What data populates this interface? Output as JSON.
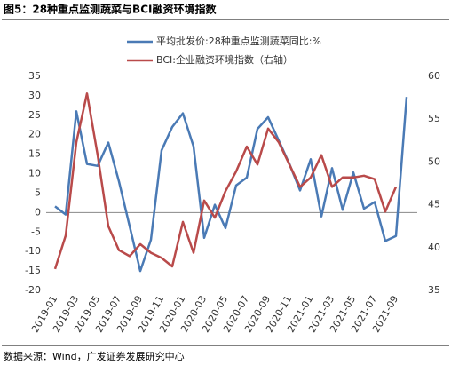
{
  "chart_data": {
    "type": "line",
    "title": "图5：28种重点监测蔬菜与BCI融资环境指数",
    "source": "数据来源：Wind，广发证券发展研究中心",
    "categories": [
      "2019-01",
      null,
      "2019-03",
      null,
      "2019-05",
      null,
      "2019-07",
      null,
      "2019-09",
      null,
      "2019-11",
      null,
      "2020-01",
      null,
      "2020-03",
      null,
      "2020-05",
      null,
      "2020-07",
      null,
      "2020-09",
      null,
      "2020-11",
      null,
      "2021-01",
      null,
      "2021-03",
      null,
      "2021-05",
      null,
      "2021-07",
      null,
      "2021-09",
      null
    ],
    "series": [
      {
        "name": "平均批发价:28种重点监测蔬菜同比:%",
        "color": "#4a7ab5",
        "axis": "y",
        "values": [
          1.6,
          -0.5,
          26,
          12.5,
          12,
          18,
          8,
          -3.5,
          -15,
          -7,
          16,
          22,
          25.5,
          17,
          -6.5,
          2,
          -4,
          7,
          9,
          21.5,
          24.5,
          18.5,
          12.5,
          5.7,
          13.7,
          -1,
          11.4,
          0.7,
          10.3,
          1,
          2.7,
          -7.3,
          -6,
          29.7
        ]
      },
      {
        "name": "BCI:企业融资环境指数（右轴）",
        "color": "#b94a4a",
        "axis": "y2",
        "values": [
          37.5,
          41.4,
          52.3,
          58,
          50.8,
          42.5,
          39.7,
          39,
          40.4,
          39.4,
          38.8,
          37.8,
          43,
          39.4,
          45.5,
          43.5,
          46.6,
          48.9,
          51.8,
          49.7,
          53.9,
          52.3,
          49.7,
          47.1,
          48.2,
          50.8,
          47.1,
          48.2,
          48.2,
          48.4,
          48,
          44.2,
          47.1,
          null
        ]
      }
    ],
    "ylim": [
      -20,
      35
    ],
    "yticks": [
      35,
      30,
      25,
      20,
      15,
      10,
      5,
      0,
      -5,
      -10,
      -15,
      -20
    ],
    "y2lim": [
      35,
      60
    ],
    "y2ticks": [
      60,
      55,
      50,
      45,
      40,
      35
    ],
    "grid": false
  }
}
